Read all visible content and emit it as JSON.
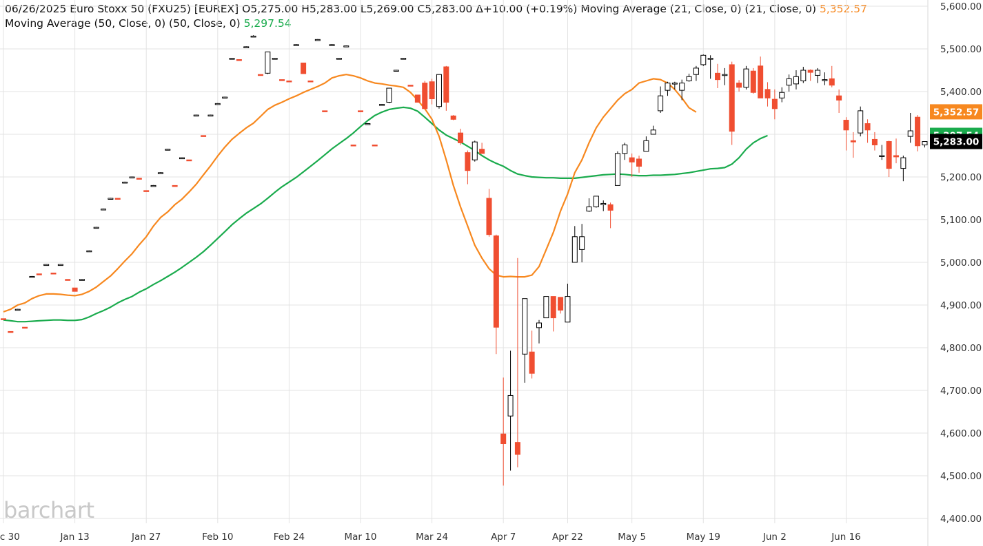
{
  "header": {
    "line1": "06/26/2025 Euro Stoxx 50 (FXU25) [EUREX] O5,275.00 H5,283.00 L5,269.00 C5,283.00 Δ+10.00 (+0.19%) Moving Average (21, Close, 0)  (21, Close, 0)",
    "ma21_value": "5,352.57",
    "line2": "Moving Average (50, Close, 0)  (50, Close, 0)",
    "ma50_value": "5,297.54"
  },
  "logo_text": "barchart",
  "chart_data": {
    "type": "candlestick",
    "title": "Euro Stoxx 50 (FXU25) [EUREX]",
    "ylim": [
      4400,
      5600
    ],
    "y_ticks": [
      "4,400.00",
      "4,500.00",
      "4,600.00",
      "4,700.00",
      "4,800.00",
      "4,900.00",
      "5,000.00",
      "5,100.00",
      "5,200.00",
      "5,300.00",
      "5,400.00",
      "5,500.00",
      "5,600.00"
    ],
    "x_ticks": [
      {
        "label": "Dec 30",
        "i": 0
      },
      {
        "label": "Jan 13",
        "i": 10
      },
      {
        "label": "Jan 27",
        "i": 20
      },
      {
        "label": "Feb 10",
        "i": 30
      },
      {
        "label": "Feb 24",
        "i": 40
      },
      {
        "label": "Mar 10",
        "i": 50
      },
      {
        "label": "Mar 24",
        "i": 60
      },
      {
        "label": "Apr 7",
        "i": 70
      },
      {
        "label": "Apr 22",
        "i": 79
      },
      {
        "label": "May 5",
        "i": 88
      },
      {
        "label": "May 19",
        "i": 98
      },
      {
        "label": "Jun 2",
        "i": 108
      },
      {
        "label": "Jun 16",
        "i": 118
      }
    ],
    "colors": {
      "up": "#000000",
      "down": "#f04e31",
      "ma21": "#f7881f",
      "ma50": "#1aab4d",
      "last": "#000000"
    },
    "last_price": "5,283.00",
    "ma21_last": "5,352.57",
    "ma50_last": "5,297.54",
    "candles": [
      {
        "o": 4868,
        "h": 4868,
        "l": 4866,
        "c": 4866
      },
      {
        "o": 4838,
        "h": 4838,
        "l": 4836,
        "c": 4836
      },
      {
        "o": 4890,
        "h": 4891,
        "l": 4889,
        "c": 4890
      },
      {
        "o": 4848,
        "h": 4848,
        "l": 4846,
        "c": 4846
      },
      {
        "o": 4967,
        "h": 4968,
        "l": 4966,
        "c": 4967
      },
      {
        "o": 4973,
        "h": 4973,
        "l": 4971,
        "c": 4971
      },
      {
        "o": 4995,
        "h": 4996,
        "l": 4994,
        "c": 4995
      },
      {
        "o": 4975,
        "h": 4975,
        "l": 4973,
        "c": 4973
      },
      {
        "o": 4995,
        "h": 4996,
        "l": 4994,
        "c": 4995
      },
      {
        "o": 4960,
        "h": 4960,
        "l": 4958,
        "c": 4958
      },
      {
        "o": 4940,
        "h": 4940,
        "l": 4932,
        "c": 4932
      },
      {
        "o": 4960,
        "h": 4961,
        "l": 4959,
        "c": 4960
      },
      {
        "o": 5027,
        "h": 5028,
        "l": 5026,
        "c": 5027
      },
      {
        "o": 5082,
        "h": 5083,
        "l": 5081,
        "c": 5082
      },
      {
        "o": 5125,
        "h": 5126,
        "l": 5124,
        "c": 5125
      },
      {
        "o": 5150,
        "h": 5151,
        "l": 5149,
        "c": 5150
      },
      {
        "o": 5150,
        "h": 5150,
        "l": 5148,
        "c": 5148
      },
      {
        "o": 5188,
        "h": 5189,
        "l": 5187,
        "c": 5188
      },
      {
        "o": 5200,
        "h": 5201,
        "l": 5199,
        "c": 5200
      },
      {
        "o": 5197,
        "h": 5197,
        "l": 5195,
        "c": 5195
      },
      {
        "o": 5168,
        "h": 5168,
        "l": 5166,
        "c": 5166
      },
      {
        "o": 5180,
        "h": 5181,
        "l": 5179,
        "c": 5180
      },
      {
        "o": 5210,
        "h": 5211,
        "l": 5209,
        "c": 5210
      },
      {
        "o": 5265,
        "h": 5266,
        "l": 5264,
        "c": 5265
      },
      {
        "o": 5180,
        "h": 5180,
        "l": 5178,
        "c": 5178
      },
      {
        "o": 5245,
        "h": 5246,
        "l": 5244,
        "c": 5245
      },
      {
        "o": 5240,
        "h": 5240,
        "l": 5238,
        "c": 5238
      },
      {
        "o": 5345,
        "h": 5346,
        "l": 5344,
        "c": 5345
      },
      {
        "o": 5297,
        "h": 5297,
        "l": 5295,
        "c": 5295
      },
      {
        "o": 5345,
        "h": 5346,
        "l": 5344,
        "c": 5345
      },
      {
        "o": 5372,
        "h": 5373,
        "l": 5371,
        "c": 5372
      },
      {
        "o": 5387,
        "h": 5388,
        "l": 5386,
        "c": 5387
      },
      {
        "o": 5478,
        "h": 5479,
        "l": 5477,
        "c": 5478
      },
      {
        "o": 5475,
        "h": 5475,
        "l": 5473,
        "c": 5473
      },
      {
        "o": 5505,
        "h": 5506,
        "l": 5504,
        "c": 5505
      },
      {
        "o": 5530,
        "h": 5532,
        "l": 5528,
        "c": 5530
      },
      {
        "o": 5440,
        "h": 5440,
        "l": 5438,
        "c": 5438
      },
      {
        "o": 5443,
        "h": 5493,
        "l": 5441,
        "c": 5493
      },
      {
        "o": 5478,
        "h": 5479,
        "l": 5477,
        "c": 5478
      },
      {
        "o": 5428,
        "h": 5428,
        "l": 5426,
        "c": 5426
      },
      {
        "o": 5425,
        "h": 5425,
        "l": 5423,
        "c": 5423
      },
      {
        "o": 5510,
        "h": 5511,
        "l": 5509,
        "c": 5510
      },
      {
        "o": 5467,
        "h": 5467,
        "l": 5442,
        "c": 5442
      },
      {
        "o": 5425,
        "h": 5425,
        "l": 5423,
        "c": 5423
      },
      {
        "o": 5522,
        "h": 5523,
        "l": 5521,
        "c": 5522
      },
      {
        "o": 5355,
        "h": 5355,
        "l": 5353,
        "c": 5353
      },
      {
        "o": 5510,
        "h": 5511,
        "l": 5509,
        "c": 5510
      },
      {
        "o": 5478,
        "h": 5479,
        "l": 5477,
        "c": 5478
      },
      {
        "o": 5507,
        "h": 5508,
        "l": 5506,
        "c": 5507
      },
      {
        "o": 5275,
        "h": 5275,
        "l": 5273,
        "c": 5273
      },
      {
        "o": 5355,
        "h": 5355,
        "l": 5353,
        "c": 5353
      },
      {
        "o": 5325,
        "h": 5326,
        "l": 5324,
        "c": 5325
      },
      {
        "o": 5275,
        "h": 5275,
        "l": 5273,
        "c": 5273
      },
      {
        "o": 5370,
        "h": 5371,
        "l": 5369,
        "c": 5370
      },
      {
        "o": 5375,
        "h": 5408,
        "l": 5373,
        "c": 5408
      },
      {
        "o": 5450,
        "h": 5451,
        "l": 5449,
        "c": 5450
      },
      {
        "o": 5478,
        "h": 5479,
        "l": 5477,
        "c": 5478
      },
      {
        "o": 5415,
        "h": 5415,
        "l": 5413,
        "c": 5413
      },
      {
        "o": 5392,
        "h": 5392,
        "l": 5375,
        "c": 5375
      },
      {
        "o": 5420,
        "h": 5425,
        "l": 5360,
        "c": 5360
      },
      {
        "o": 5423,
        "h": 5430,
        "l": 5370,
        "c": 5383
      },
      {
        "o": 5365,
        "h": 5440,
        "l": 5360,
        "c": 5440
      },
      {
        "o": 5458,
        "h": 5460,
        "l": 5355,
        "c": 5375
      },
      {
        "o": 5343,
        "h": 5345,
        "l": 5333,
        "c": 5335
      },
      {
        "o": 5303,
        "h": 5313,
        "l": 5275,
        "c": 5280
      },
      {
        "o": 5257,
        "h": 5262,
        "l": 5183,
        "c": 5215
      },
      {
        "o": 5240,
        "h": 5285,
        "l": 5236,
        "c": 5282
      },
      {
        "o": 5265,
        "h": 5280,
        "l": 5255,
        "c": 5255
      },
      {
        "o": 5150,
        "h": 5172,
        "l": 5060,
        "c": 5065
      },
      {
        "o": 5062,
        "h": 5065,
        "l": 4785,
        "c": 4848
      },
      {
        "o": 4598,
        "h": 4730,
        "l": 4477,
        "c": 4575
      },
      {
        "o": 4640,
        "h": 4793,
        "l": 4512,
        "c": 4688
      },
      {
        "o": 4578,
        "h": 5010,
        "l": 4520,
        "c": 4550
      },
      {
        "o": 4785,
        "h": 4915,
        "l": 4718,
        "c": 4915
      },
      {
        "o": 4790,
        "h": 4840,
        "l": 4728,
        "c": 4740
      },
      {
        "o": 4847,
        "h": 4865,
        "l": 4810,
        "c": 4858
      },
      {
        "o": 4870,
        "h": 4920,
        "l": 4870,
        "c": 4920
      },
      {
        "o": 4920,
        "h": 4920,
        "l": 4838,
        "c": 4870
      },
      {
        "o": 4918,
        "h": 4918,
        "l": 4880,
        "c": 4888
      },
      {
        "o": 4860,
        "h": 4950,
        "l": 4860,
        "c": 4920
      },
      {
        "o": 5000,
        "h": 5085,
        "l": 5000,
        "c": 5060
      },
      {
        "o": 5030,
        "h": 5090,
        "l": 5000,
        "c": 5060
      },
      {
        "o": 5120,
        "h": 5150,
        "l": 5118,
        "c": 5130
      },
      {
        "o": 5130,
        "h": 5155,
        "l": 5128,
        "c": 5155
      },
      {
        "o": 5135,
        "h": 5145,
        "l": 5120,
        "c": 5138
      },
      {
        "o": 5135,
        "h": 5140,
        "l": 5080,
        "c": 5122
      },
      {
        "o": 5180,
        "h": 5260,
        "l": 5180,
        "c": 5255
      },
      {
        "o": 5255,
        "h": 5280,
        "l": 5240,
        "c": 5275
      },
      {
        "o": 5245,
        "h": 5255,
        "l": 5200,
        "c": 5235
      },
      {
        "o": 5242,
        "h": 5250,
        "l": 5210,
        "c": 5225
      },
      {
        "o": 5260,
        "h": 5295,
        "l": 5260,
        "c": 5285
      },
      {
        "o": 5300,
        "h": 5320,
        "l": 5300,
        "c": 5310
      },
      {
        "o": 5355,
        "h": 5412,
        "l": 5350,
        "c": 5390
      },
      {
        "o": 5403,
        "h": 5423,
        "l": 5390,
        "c": 5420
      },
      {
        "o": 5418,
        "h": 5423,
        "l": 5405,
        "c": 5420
      },
      {
        "o": 5403,
        "h": 5428,
        "l": 5380,
        "c": 5420
      },
      {
        "o": 5425,
        "h": 5442,
        "l": 5423,
        "c": 5435
      },
      {
        "o": 5440,
        "h": 5460,
        "l": 5425,
        "c": 5455
      },
      {
        "o": 5463,
        "h": 5487,
        "l": 5460,
        "c": 5485
      },
      {
        "o": 5478,
        "h": 5485,
        "l": 5430,
        "c": 5478
      },
      {
        "o": 5443,
        "h": 5465,
        "l": 5408,
        "c": 5428
      },
      {
        "o": 5440,
        "h": 5455,
        "l": 5415,
        "c": 5440
      },
      {
        "o": 5463,
        "h": 5470,
        "l": 5275,
        "c": 5307
      },
      {
        "o": 5420,
        "h": 5427,
        "l": 5400,
        "c": 5410
      },
      {
        "o": 5410,
        "h": 5460,
        "l": 5405,
        "c": 5453
      },
      {
        "o": 5448,
        "h": 5455,
        "l": 5395,
        "c": 5398
      },
      {
        "o": 5460,
        "h": 5482,
        "l": 5385,
        "c": 5385
      },
      {
        "o": 5405,
        "h": 5422,
        "l": 5365,
        "c": 5385
      },
      {
        "o": 5382,
        "h": 5405,
        "l": 5335,
        "c": 5360
      },
      {
        "o": 5385,
        "h": 5410,
        "l": 5375,
        "c": 5398
      },
      {
        "o": 5415,
        "h": 5440,
        "l": 5400,
        "c": 5430
      },
      {
        "o": 5418,
        "h": 5450,
        "l": 5405,
        "c": 5435
      },
      {
        "o": 5425,
        "h": 5458,
        "l": 5420,
        "c": 5450
      },
      {
        "o": 5450,
        "h": 5452,
        "l": 5425,
        "c": 5445
      },
      {
        "o": 5438,
        "h": 5455,
        "l": 5420,
        "c": 5450
      },
      {
        "o": 5428,
        "h": 5445,
        "l": 5415,
        "c": 5428
      },
      {
        "o": 5430,
        "h": 5460,
        "l": 5410,
        "c": 5415
      },
      {
        "o": 5390,
        "h": 5405,
        "l": 5350,
        "c": 5380
      },
      {
        "o": 5333,
        "h": 5340,
        "l": 5262,
        "c": 5310
      },
      {
        "o": 5285,
        "h": 5305,
        "l": 5245,
        "c": 5282
      },
      {
        "o": 5303,
        "h": 5365,
        "l": 5295,
        "c": 5355
      },
      {
        "o": 5325,
        "h": 5335,
        "l": 5280,
        "c": 5310
      },
      {
        "o": 5288,
        "h": 5305,
        "l": 5262,
        "c": 5275
      },
      {
        "o": 5250,
        "h": 5275,
        "l": 5240,
        "c": 5250
      },
      {
        "o": 5283,
        "h": 5285,
        "l": 5200,
        "c": 5220
      },
      {
        "o": 5250,
        "h": 5290,
        "l": 5232,
        "c": 5247
      },
      {
        "o": 5220,
        "h": 5250,
        "l": 5190,
        "c": 5245
      },
      {
        "o": 5295,
        "h": 5350,
        "l": 5280,
        "c": 5308
      },
      {
        "o": 5340,
        "h": 5345,
        "l": 5260,
        "c": 5273
      },
      {
        "o": 5275,
        "h": 5283,
        "l": 5269,
        "c": 5283
      }
    ],
    "ma21": [
      4884,
      4890,
      4900,
      4905,
      4915,
      4922,
      4926,
      4926,
      4925,
      4923,
      4922,
      4925,
      4932,
      4942,
      4955,
      4968,
      4985,
      5003,
      5020,
      5041,
      5060,
      5085,
      5105,
      5118,
      5135,
      5148,
      5165,
      5183,
      5205,
      5226,
      5249,
      5270,
      5288,
      5302,
      5315,
      5326,
      5342,
      5358,
      5368,
      5375,
      5383,
      5390,
      5398,
      5405,
      5412,
      5420,
      5432,
      5437,
      5440,
      5437,
      5432,
      5425,
      5420,
      5418,
      5415,
      5413,
      5410,
      5398,
      5380,
      5360,
      5335,
      5295,
      5240,
      5180,
      5130,
      5085,
      5040,
      5010,
      4985,
      4970,
      4966,
      4967,
      4966,
      4966,
      4970,
      4990,
      5030,
      5070,
      5120,
      5160,
      5210,
      5240,
      5280,
      5315,
      5340,
      5360,
      5380,
      5395,
      5405,
      5420,
      5425,
      5430,
      5428,
      5420,
      5405,
      5385,
      5362,
      5352
    ],
    "ma21_start": 0,
    "ma50": [
      4865,
      4863,
      4861,
      4861,
      4862,
      4863,
      4864,
      4865,
      4865,
      4864,
      4864,
      4866,
      4872,
      4880,
      4887,
      4895,
      4905,
      4913,
      4920,
      4930,
      4938,
      4948,
      4957,
      4967,
      4977,
      4988,
      5000,
      5012,
      5025,
      5040,
      5056,
      5072,
      5088,
      5102,
      5115,
      5126,
      5137,
      5150,
      5164,
      5177,
      5188,
      5199,
      5212,
      5225,
      5238,
      5252,
      5266,
      5278,
      5290,
      5303,
      5318,
      5332,
      5344,
      5352,
      5358,
      5361,
      5363,
      5361,
      5354,
      5340,
      5325,
      5310,
      5298,
      5290,
      5282,
      5272,
      5262,
      5250,
      5240,
      5232,
      5225,
      5215,
      5207,
      5203,
      5200,
      5199,
      5198,
      5198,
      5197,
      5197,
      5197,
      5199,
      5201,
      5203,
      5205,
      5206,
      5207,
      5206,
      5204,
      5203,
      5203,
      5204,
      5204,
      5205,
      5206,
      5208,
      5210,
      5213,
      5216,
      5219,
      5220,
      5222,
      5230,
      5245,
      5265,
      5280,
      5290,
      5297
    ],
    "ma50_start": 0
  }
}
